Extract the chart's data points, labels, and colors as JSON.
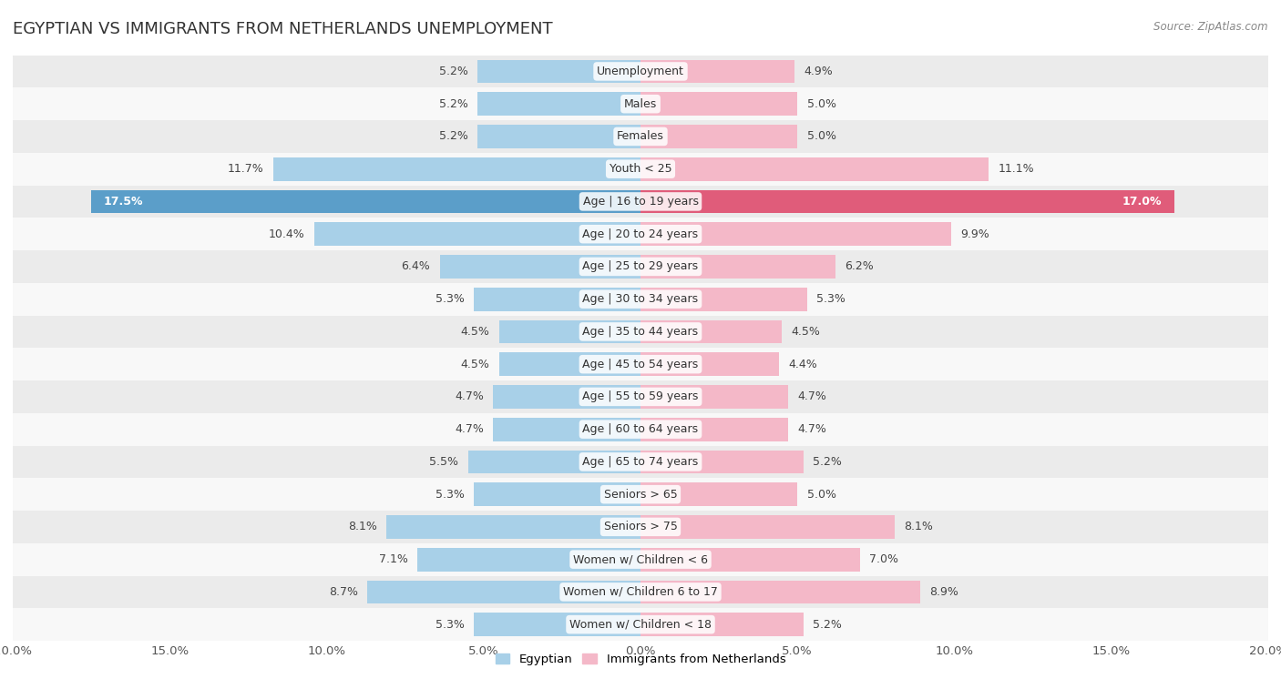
{
  "title": "EGYPTIAN VS IMMIGRANTS FROM NETHERLANDS UNEMPLOYMENT",
  "source": "Source: ZipAtlas.com",
  "categories": [
    "Unemployment",
    "Males",
    "Females",
    "Youth < 25",
    "Age | 16 to 19 years",
    "Age | 20 to 24 years",
    "Age | 25 to 29 years",
    "Age | 30 to 34 years",
    "Age | 35 to 44 years",
    "Age | 45 to 54 years",
    "Age | 55 to 59 years",
    "Age | 60 to 64 years",
    "Age | 65 to 74 years",
    "Seniors > 65",
    "Seniors > 75",
    "Women w/ Children < 6",
    "Women w/ Children 6 to 17",
    "Women w/ Children < 18"
  ],
  "egyptian": [
    5.2,
    5.2,
    5.2,
    11.7,
    17.5,
    10.4,
    6.4,
    5.3,
    4.5,
    4.5,
    4.7,
    4.7,
    5.5,
    5.3,
    8.1,
    7.1,
    8.7,
    5.3
  ],
  "netherlands": [
    4.9,
    5.0,
    5.0,
    11.1,
    17.0,
    9.9,
    6.2,
    5.3,
    4.5,
    4.4,
    4.7,
    4.7,
    5.2,
    5.0,
    8.1,
    7.0,
    8.9,
    5.2
  ],
  "egyptian_color": "#a8d0e8",
  "netherlands_color": "#f4b8c8",
  "highlight_egyptian_color": "#5b9ec9",
  "highlight_netherlands_color": "#e05c7a",
  "highlight_row": 4,
  "xlim": 20.0,
  "bar_height": 0.72,
  "bg_color_odd": "#ebebeb",
  "bg_color_even": "#f8f8f8",
  "value_color_normal": "#555555",
  "value_color_highlight": "#ffffff",
  "title_fontsize": 13,
  "label_fontsize": 9,
  "value_fontsize": 9,
  "tick_fontsize": 9.5,
  "legend_egyptian": "Egyptian",
  "legend_netherlands": "Immigrants from Netherlands"
}
